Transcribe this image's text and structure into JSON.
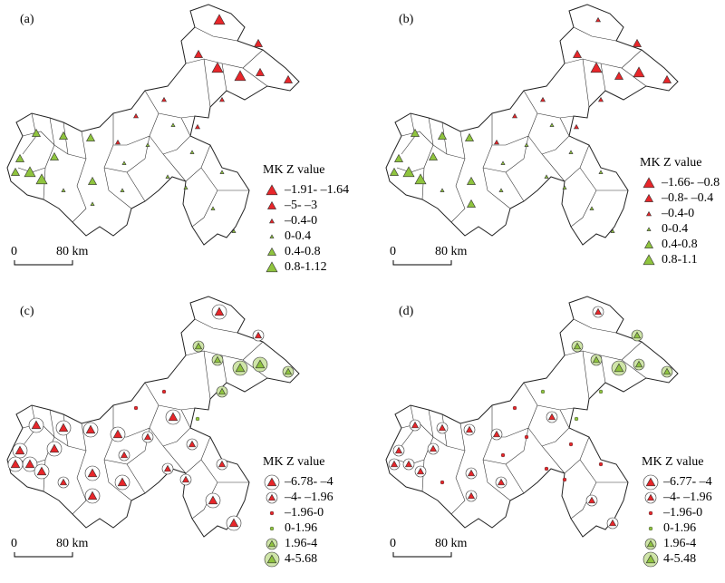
{
  "panels": [
    {
      "label": "(a)",
      "legend": {
        "title": "MK Z value",
        "items": [
          "–1.91- –1.64",
          "–5- –3",
          "–0.4-0",
          "0-0.4",
          "0.4-0.8",
          "0.8-1.12"
        ]
      },
      "scale": {
        "start": "0",
        "end": "80 km"
      }
    },
    {
      "label": "(b)",
      "legend": {
        "title": "MK Z value",
        "items": [
          "–1.66- –0.8",
          "–0.8- –0.4",
          "–0.4-0",
          "0-0.4",
          "0.4-0.8",
          "0.8-1.1"
        ]
      },
      "scale": {
        "start": "0",
        "end": "80 km"
      }
    },
    {
      "label": "(c)",
      "legend": {
        "title": "MK Z value",
        "items": [
          "–6.78- –4",
          "–4- –1.96",
          "–1.96-0",
          "0-1.96",
          "1.96-4",
          "4-5.68"
        ]
      },
      "scale": {
        "start": "0",
        "end": "80 km"
      }
    },
    {
      "label": "(d)",
      "legend": {
        "title": "MK Z value",
        "items": [
          "–6.77- –4",
          "–4- –1.96",
          "–1.96-0",
          "0-1.96",
          "1.96-4",
          "4-5.48"
        ]
      },
      "scale": {
        "start": "0",
        "end": "80 km"
      }
    }
  ]
}
